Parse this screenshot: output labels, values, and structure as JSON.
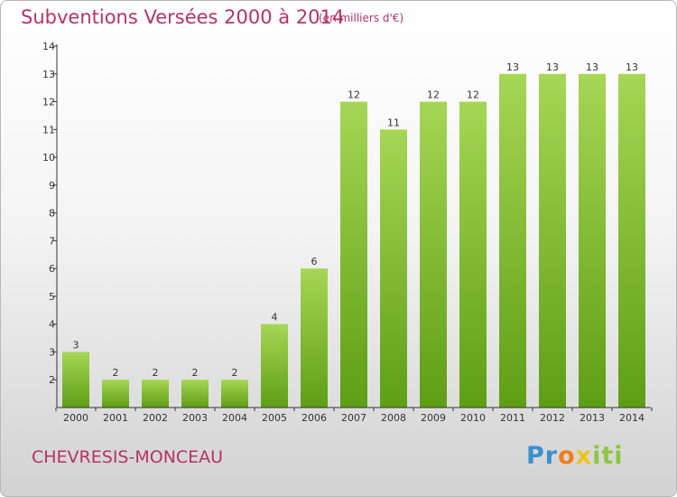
{
  "title": "Subventions Versées 2000 à 2014",
  "subtitle": "(en milliers d'€)",
  "commune": "CHEVRESIS-MONCEAU",
  "logo": "Proxiti",
  "colors": {
    "title": "#b5326a",
    "bar_light": "#a6d655",
    "bar_dark": "#5e9e15"
  },
  "chart_data": {
    "type": "bar",
    "categories": [
      "2000",
      "2001",
      "2002",
      "2003",
      "2004",
      "2005",
      "2006",
      "2007",
      "2008",
      "2009",
      "2010",
      "2011",
      "2012",
      "2013",
      "2014"
    ],
    "values": [
      3,
      2,
      2,
      2,
      2,
      4,
      6,
      12,
      11,
      12,
      12,
      13,
      13,
      13,
      13
    ],
    "data_labels": [
      "3",
      "2",
      "2",
      "2",
      "2",
      "4",
      "6",
      "12",
      "11",
      "12",
      "12",
      "13",
      "13",
      "13",
      "13"
    ],
    "yticks": [
      "2",
      "3",
      "4",
      "5",
      "6",
      "7",
      "8",
      "9",
      "10",
      "11",
      "12",
      "13",
      "14"
    ],
    "ylim": [
      1,
      14
    ],
    "grid": false,
    "xlabel": "",
    "ylabel": ""
  }
}
